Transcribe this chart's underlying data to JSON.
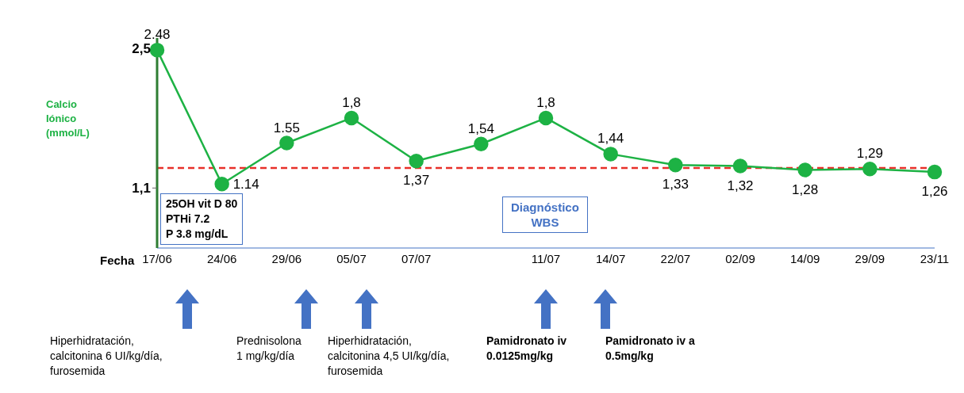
{
  "chart_data": {
    "type": "line",
    "ylabel": "Calcio Iónico (mmol/L)",
    "xlabel": "Fecha",
    "categories": [
      "17/06",
      "24/06",
      "29/06",
      "05/07",
      "07/07",
      null,
      "11/07",
      "14/07",
      "22/07",
      "02/09",
      "14/09",
      "29/09",
      "23/11"
    ],
    "series": [
      {
        "color": "#1db244",
        "values": [
          2.48,
          1.14,
          1.55,
          1.8,
          1.37,
          1.54,
          1.8,
          1.44,
          1.33,
          1.32,
          1.28,
          1.29,
          1.26
        ],
        "value_labels": [
          "2.48",
          "1.14",
          "1.55",
          "1,8",
          "1,37",
          "1,54",
          "1,8",
          "1,44",
          "1,33",
          "1,32",
          "1,28",
          "1,29",
          "1,26"
        ]
      }
    ],
    "ylim": [
      0.5,
      2.6
    ],
    "yticks": [
      {
        "value": 1.1,
        "label": "1,1"
      },
      {
        "value": 2.5,
        "label": "2,5"
      }
    ],
    "marker": "circle",
    "line_style": "solid",
    "ref_lines": [
      {
        "axis": "y",
        "value": 1.3,
        "label": null,
        "color": "#e8302a",
        "line_style": "dashed"
      }
    ],
    "annotations": [
      "25OH vit D 80\nPTHi 7.2\nP 3.8 mg/dL",
      "Diagnóstico\nWBS",
      "Hiperhidratación,\ncalcitonina 6 UI/kg/día,\nfurosemida",
      "Prednisolona\n1 mg/kg/día",
      "Hiperhidratación,\ncalcitonina 4,5 UI/kg/día,\nfurosemida",
      "Pamidronato iv\n0.0125mg/kg",
      "Pamidronato iv a\n0.5mg/kg"
    ]
  }
}
